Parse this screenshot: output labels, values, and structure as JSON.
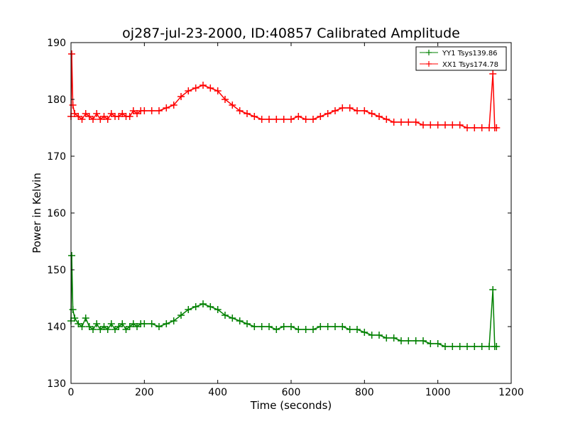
{
  "chart_data": {
    "type": "line",
    "title": "oj287-jul-23-2000, ID:40857 Calibrated Amplitude",
    "xlabel": "Time (seconds)",
    "ylabel": "Power in Kelvin",
    "xlim": [
      0,
      1200
    ],
    "ylim": [
      130,
      190
    ],
    "xticks": [
      0,
      200,
      400,
      600,
      800,
      1000,
      1200
    ],
    "yticks": [
      130,
      140,
      150,
      160,
      170,
      180,
      190
    ],
    "grid": false,
    "legend_position": "top-right",
    "marker": "plus",
    "series": [
      {
        "name": "YY1 Tsys139.86",
        "color": "#008000",
        "x": [
          0,
          2,
          5,
          10,
          20,
          30,
          40,
          50,
          60,
          70,
          80,
          90,
          100,
          110,
          120,
          130,
          140,
          150,
          160,
          170,
          180,
          190,
          200,
          220,
          240,
          260,
          280,
          300,
          320,
          340,
          360,
          380,
          400,
          420,
          440,
          460,
          480,
          500,
          520,
          540,
          560,
          580,
          600,
          620,
          640,
          660,
          680,
          700,
          720,
          740,
          760,
          780,
          800,
          820,
          840,
          860,
          880,
          900,
          920,
          940,
          960,
          980,
          1000,
          1020,
          1040,
          1060,
          1080,
          1100,
          1120,
          1140,
          1150,
          1155,
          1160
        ],
        "values": [
          141,
          152.5,
          143,
          141.5,
          140.5,
          140,
          141.5,
          140,
          139.5,
          140.5,
          139.5,
          140,
          139.5,
          140.5,
          139.5,
          140,
          140.5,
          139.5,
          140,
          140.5,
          140,
          140.5,
          140.5,
          140.5,
          140,
          140.5,
          141,
          142,
          143,
          143.5,
          144,
          143.5,
          143,
          142,
          141.5,
          141,
          140.5,
          140,
          140,
          140,
          139.5,
          140,
          140,
          139.5,
          139.5,
          139.5,
          140,
          140,
          140,
          140,
          139.5,
          139.5,
          139,
          138.5,
          138.5,
          138,
          138,
          137.5,
          137.5,
          137.5,
          137.5,
          137,
          137,
          136.5,
          136.5,
          136.5,
          136.5,
          136.5,
          136.5,
          136.5,
          146.5,
          136.5,
          136.5
        ]
      },
      {
        "name": "XX1 Tsys174.78",
        "color": "#ff0000",
        "x": [
          0,
          2,
          5,
          10,
          20,
          30,
          40,
          50,
          60,
          70,
          80,
          90,
          100,
          110,
          120,
          130,
          140,
          150,
          160,
          170,
          180,
          190,
          200,
          220,
          240,
          260,
          280,
          300,
          320,
          340,
          360,
          380,
          400,
          420,
          440,
          460,
          480,
          500,
          520,
          540,
          560,
          580,
          600,
          620,
          640,
          660,
          680,
          700,
          720,
          740,
          760,
          780,
          800,
          820,
          840,
          860,
          880,
          900,
          920,
          940,
          960,
          980,
          1000,
          1020,
          1040,
          1060,
          1080,
          1100,
          1120,
          1140,
          1150,
          1155,
          1160
        ],
        "values": [
          177,
          188,
          179,
          177.5,
          177,
          176.5,
          177.5,
          177,
          176.5,
          177.5,
          176.5,
          177,
          176.5,
          177.5,
          177,
          177,
          177.5,
          177,
          177,
          178,
          177.5,
          178,
          178,
          178,
          178,
          178.5,
          179,
          180.5,
          181.5,
          182,
          182.5,
          182,
          181.5,
          180,
          179,
          178,
          177.5,
          177,
          176.5,
          176.5,
          176.5,
          176.5,
          176.5,
          177,
          176.5,
          176.5,
          177,
          177.5,
          178,
          178.5,
          178.5,
          178,
          178,
          177.5,
          177,
          176.5,
          176,
          176,
          176,
          176,
          175.5,
          175.5,
          175.5,
          175.5,
          175.5,
          175.5,
          175,
          175,
          175,
          175,
          184.5,
          175,
          175
        ]
      }
    ]
  }
}
